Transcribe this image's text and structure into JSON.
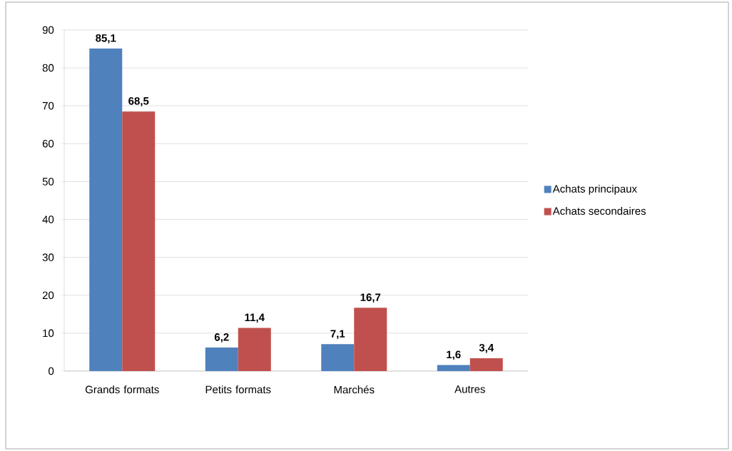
{
  "chart_data": {
    "type": "bar",
    "categories": [
      "Grands formats",
      "Petits formats",
      "Marchés",
      "Autres"
    ],
    "series": [
      {
        "name": "Achats principaux",
        "color": "#4f81bd",
        "values": [
          85.1,
          6.2,
          7.1,
          1.6
        ],
        "value_labels": [
          "85,1",
          "6,2",
          "7,1",
          "1,6"
        ]
      },
      {
        "name": "Achats secondaires",
        "color": "#c0504d",
        "values": [
          68.5,
          11.4,
          16.7,
          3.4
        ],
        "value_labels": [
          "68,5",
          "11,4",
          "16,7",
          "3,4"
        ]
      }
    ],
    "ylim": [
      0,
      90
    ],
    "yticks": [
      0,
      10,
      20,
      30,
      40,
      50,
      60,
      70,
      80,
      90
    ],
    "grid": "y",
    "legend": "right"
  }
}
